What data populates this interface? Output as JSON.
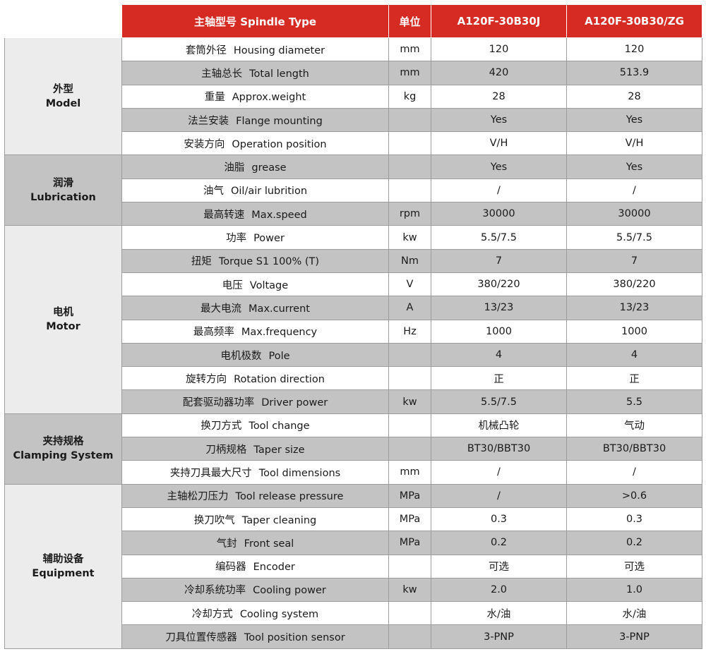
{
  "header": {
    "param_label": "主轴型号 Spindle Type",
    "unit_label": "单位",
    "models": [
      "A120F-30B30J",
      "A120F-30B30/ZG"
    ]
  },
  "groups": [
    {
      "zh": "外型",
      "en": "Model",
      "rows": [
        {
          "zh": "套筒外径",
          "en": "Housing diameter",
          "unit": "mm",
          "v": [
            "120",
            "120"
          ]
        },
        {
          "zh": "主轴总长",
          "en": "Total length",
          "unit": "mm",
          "v": [
            "420",
            "513.9"
          ]
        },
        {
          "zh": "重量",
          "en": "Approx.weight",
          "unit": "kg",
          "v": [
            "28",
            "28"
          ]
        },
        {
          "zh": "法兰安装",
          "en": "Flange mounting",
          "unit": "",
          "v": [
            "Yes",
            "Yes"
          ]
        },
        {
          "zh": "安装方向",
          "en": "Operation position",
          "unit": "",
          "v": [
            "V/H",
            "V/H"
          ]
        }
      ]
    },
    {
      "zh": "润滑",
      "en": "Lubrication",
      "rows": [
        {
          "zh": "油脂",
          "en": "grease",
          "unit": "",
          "v": [
            "Yes",
            "Yes"
          ]
        },
        {
          "zh": "油气",
          "en": "Oil/air lubrition",
          "unit": "",
          "v": [
            "/",
            "/"
          ]
        },
        {
          "zh": "最高转速",
          "en": "Max.speed",
          "unit": "rpm",
          "v": [
            "30000",
            "30000"
          ]
        }
      ]
    },
    {
      "zh": "电机",
      "en": "Motor",
      "rows": [
        {
          "zh": "功率",
          "en": "Power",
          "unit": "kw",
          "v": [
            "5.5/7.5",
            "5.5/7.5"
          ]
        },
        {
          "zh": "扭矩",
          "en": "Torque S1 100% (T)",
          "unit": "Nm",
          "v": [
            "7",
            "7"
          ]
        },
        {
          "zh": "电压",
          "en": "Voltage",
          "unit": "V",
          "v": [
            "380/220",
            "380/220"
          ]
        },
        {
          "zh": "最大电流",
          "en": "Max.current",
          "unit": "A",
          "v": [
            "13/23",
            "13/23"
          ]
        },
        {
          "zh": "最高频率",
          "en": "Max.frequency",
          "unit": "Hz",
          "v": [
            "1000",
            "1000"
          ]
        },
        {
          "zh": "电机极数",
          "en": "Pole",
          "unit": "",
          "v": [
            "4",
            "4"
          ]
        },
        {
          "zh": "旋转方向",
          "en": "Rotation direction",
          "unit": "",
          "v": [
            "正",
            "正"
          ]
        },
        {
          "zh": "配套驱动器功率",
          "en": "Driver power",
          "unit": "kw",
          "v": [
            "5.5/7.5",
            "5.5"
          ]
        }
      ]
    },
    {
      "zh": "夹持规格",
      "en": "Clamping System",
      "rows": [
        {
          "zh": "换刀方式",
          "en": "Tool change",
          "unit": "",
          "v": [
            "机械凸轮",
            "气动"
          ]
        },
        {
          "zh": "刀柄规格",
          "en": "Taper size",
          "unit": "",
          "v": [
            "BT30/BBT30",
            "BT30/BBT30"
          ]
        },
        {
          "zh": "夹持刀具最大尺寸",
          "en": "Tool dimensions",
          "unit": "mm",
          "v": [
            "/",
            "/"
          ]
        }
      ]
    },
    {
      "zh": "辅助设备",
      "en": "Equipment",
      "rows": [
        {
          "zh": "主轴松刀压力",
          "en": "Tool release pressure",
          "unit": "MPa",
          "v": [
            "/",
            ">0.6"
          ]
        },
        {
          "zh": "换刀吹气",
          "en": "Taper cleaning",
          "unit": "MPa",
          "v": [
            "0.3",
            "0.3"
          ]
        },
        {
          "zh": "气封",
          "en": "Front seal",
          "unit": "MPa",
          "v": [
            "0.2",
            "0.2"
          ]
        },
        {
          "zh": "编码器",
          "en": "Encoder",
          "unit": "",
          "v": [
            "可选",
            "可选"
          ]
        },
        {
          "zh": "冷却系统功率",
          "en": "Cooling power",
          "unit": "kw",
          "v": [
            "2.0",
            "1.0"
          ]
        },
        {
          "zh": "冷却方式",
          "en": "Cooling system",
          "unit": "",
          "v": [
            "水/油",
            "水/油"
          ]
        },
        {
          "zh": "刀具位置传感器",
          "en": "Tool position sensor",
          "unit": "",
          "v": [
            "3-PNP",
            "3-PNP"
          ]
        }
      ]
    }
  ]
}
